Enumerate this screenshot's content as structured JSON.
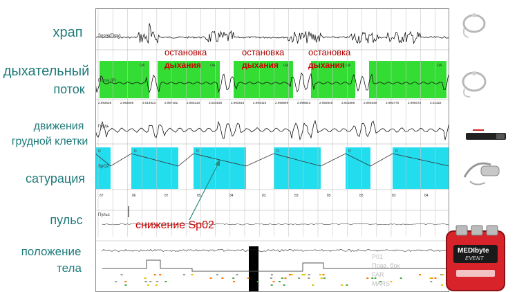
{
  "labels": {
    "snore": "храп",
    "airflow_line1": "дыхательный",
    "airflow_line2": "поток",
    "chest_line1": "движения",
    "chest_line2": "грудной клетки",
    "saturation": "сатурация",
    "pulse": "пульс",
    "position_line1": "положение",
    "position_line2": "тела"
  },
  "channels": {
    "snore": "Snore(Flow)",
    "airflow": "Поток (P)",
    "chest": "Грудь",
    "spo2": "SpO2",
    "pulse": "Пульс"
  },
  "annotations": {
    "apnea": [
      {
        "line1": "остановка",
        "line2": "дыхания"
      },
      {
        "line1": "остановка",
        "line2": "дыхания"
      },
      {
        "line1": "остановка",
        "line2": "дыхания"
      }
    ],
    "spo2_drop": "снижение Sp02"
  },
  "event_codes": {
    "apnea": "OA",
    "desat": "D"
  },
  "airflow_values": [
    "2.992535",
    "2.992595",
    "3.014923",
    "2.997182",
    "2.992310",
    "3.024536",
    "2.992916",
    "2.994416",
    "2.998699",
    "2.998843",
    "2.992848",
    "3.001886",
    "2.994849",
    "2.992775",
    "2.995072",
    "3.01322"
  ],
  "spo2_values": [
    "87",
    "86",
    "87",
    "85",
    "84",
    "83",
    "83",
    "85",
    "83",
    "83",
    "84"
  ],
  "position_codes": [
    "P01",
    "Прав. бок",
    "FAR",
    "МARS"
  ],
  "device": {
    "brand": "MEDIbyte",
    "badge": "EVENT"
  },
  "colors": {
    "label_teal": "#1f7a7a",
    "apnea_green": "#33dd33",
    "desat_cyan": "#22ddee",
    "annotation_red": "#cc0000"
  }
}
